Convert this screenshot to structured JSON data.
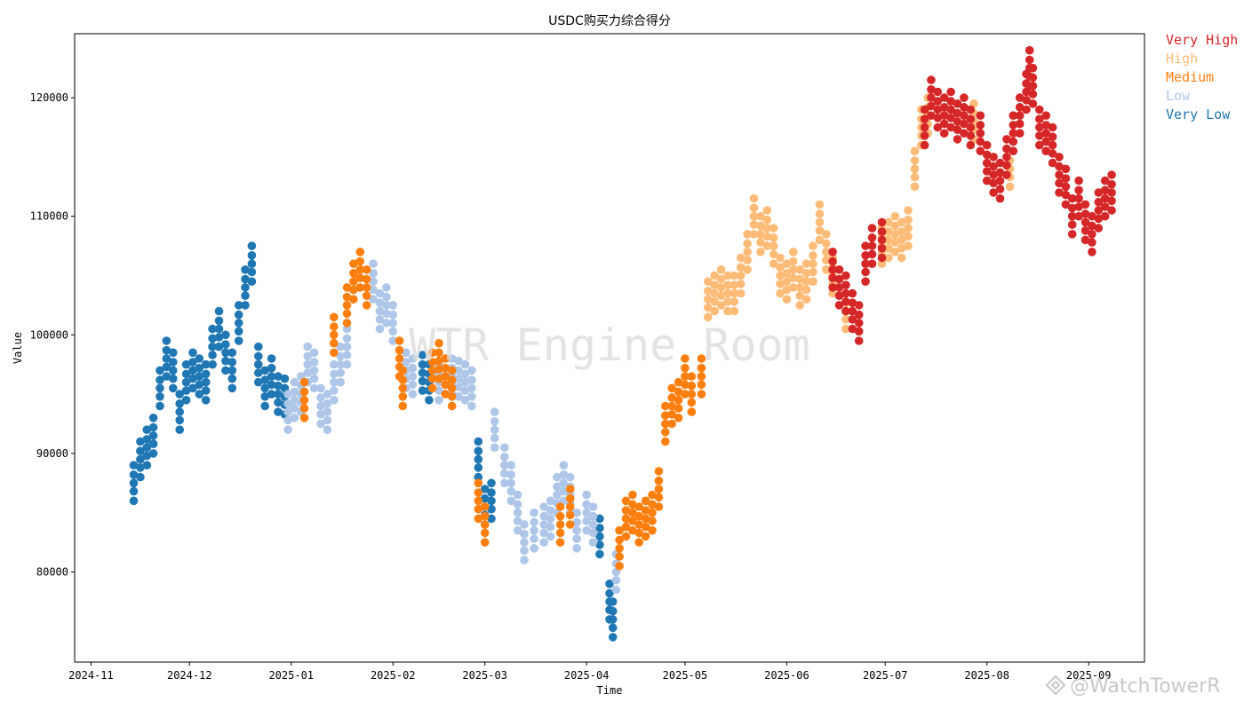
{
  "chart_data": {
    "type": "scatter",
    "title": "USDC购买力综合得分",
    "xlabel": "Time",
    "ylabel": "Value",
    "ylim": [
      72400,
      125400
    ],
    "y_ticks": [
      80000,
      90000,
      100000,
      110000,
      120000
    ],
    "y_tick_labels": [
      "80000",
      "90000",
      "100000",
      "110000",
      "120000"
    ],
    "x_ticks": [
      "2024-11",
      "2024-12",
      "2025-01",
      "2025-02",
      "2025-03",
      "2025-04",
      "2025-05",
      "2025-06",
      "2025-07",
      "2025-08",
      "2025-09"
    ],
    "x_range": [
      "2024-10-27",
      "2025-09-18"
    ],
    "grid": false,
    "legend_position": "outside-top-right",
    "legend": [
      {
        "name": "Very High",
        "color": "#d62728"
      },
      {
        "name": "High",
        "color": "#ffbb78"
      },
      {
        "name": "Medium",
        "color": "#ff7f0e"
      },
      {
        "name": "Low",
        "color": "#aec7e8"
      },
      {
        "name": "Very Low",
        "color": "#1f77b4"
      }
    ],
    "watermark": "WTR Engine Room",
    "series": [
      {
        "name": "Very Low",
        "color": "#1f77b4",
        "points": [
          [
            "2024-11-14",
            87500
          ],
          [
            "2024-11-16",
            89500
          ],
          [
            "2024-11-18",
            90500
          ],
          [
            "2024-11-20",
            91500
          ],
          [
            "2024-11-22",
            95500
          ],
          [
            "2024-11-24",
            98000
          ],
          [
            "2024-11-26",
            97000
          ],
          [
            "2024-11-28",
            93500
          ],
          [
            "2024-11-30",
            96000
          ],
          [
            "2024-12-02",
            97000
          ],
          [
            "2024-12-04",
            96500
          ],
          [
            "2024-12-06",
            96000
          ],
          [
            "2024-12-08",
            99000
          ],
          [
            "2024-12-10",
            100500
          ],
          [
            "2024-12-12",
            98500
          ],
          [
            "2024-12-14",
            97000
          ],
          [
            "2024-12-16",
            101000
          ],
          [
            "2024-12-18",
            104000
          ],
          [
            "2024-12-20",
            106000
          ],
          [
            "2024-12-22",
            97500
          ],
          [
            "2024-12-24",
            95500
          ],
          [
            "2024-12-26",
            96500
          ],
          [
            "2024-12-28",
            95000
          ],
          [
            "2024-12-30",
            94800
          ],
          [
            "2025-02-10",
            96800
          ],
          [
            "2025-02-12",
            96000
          ],
          [
            "2025-02-27",
            89500
          ],
          [
            "2025-03-01",
            85500
          ],
          [
            "2025-03-03",
            86000
          ],
          [
            "2025-04-05",
            83000
          ],
          [
            "2025-04-08",
            77500
          ],
          [
            "2025-04-09",
            76000
          ]
        ]
      },
      {
        "name": "Low",
        "color": "#aec7e8",
        "points": [
          [
            "2024-12-31",
            93500
          ],
          [
            "2025-01-02",
            94500
          ],
          [
            "2025-01-04",
            95000
          ],
          [
            "2025-01-06",
            97500
          ],
          [
            "2025-01-08",
            97000
          ],
          [
            "2025-01-10",
            94000
          ],
          [
            "2025-01-12",
            93500
          ],
          [
            "2025-01-14",
            96000
          ],
          [
            "2025-01-16",
            97500
          ],
          [
            "2025-01-18",
            99000
          ],
          [
            "2025-01-26",
            104500
          ],
          [
            "2025-01-28",
            102000
          ],
          [
            "2025-01-30",
            102500
          ],
          [
            "2025-02-01",
            101000
          ],
          [
            "2025-02-05",
            97000
          ],
          [
            "2025-02-07",
            96500
          ],
          [
            "2025-02-15",
            96000
          ],
          [
            "2025-02-19",
            96500
          ],
          [
            "2025-02-21",
            96300
          ],
          [
            "2025-02-23",
            96000
          ],
          [
            "2025-02-25",
            95500
          ],
          [
            "2025-03-04",
            92000
          ],
          [
            "2025-03-07",
            89000
          ],
          [
            "2025-03-09",
            87500
          ],
          [
            "2025-03-11",
            85000
          ],
          [
            "2025-03-13",
            82500
          ],
          [
            "2025-03-16",
            83500
          ],
          [
            "2025-03-19",
            84000
          ],
          [
            "2025-03-21",
            84500
          ],
          [
            "2025-03-23",
            86500
          ],
          [
            "2025-03-25",
            87500
          ],
          [
            "2025-03-27",
            86500
          ],
          [
            "2025-03-29",
            83500
          ],
          [
            "2025-04-01",
            85000
          ],
          [
            "2025-04-03",
            84000
          ],
          [
            "2025-04-10",
            80000
          ]
        ]
      },
      {
        "name": "Medium",
        "color": "#ff7f0e",
        "points": [
          [
            "2025-01-05",
            94500
          ],
          [
            "2025-01-14",
            100000
          ],
          [
            "2025-01-18",
            102500
          ],
          [
            "2025-01-20",
            104500
          ],
          [
            "2025-01-22",
            105500
          ],
          [
            "2025-01-24",
            104000
          ],
          [
            "2025-02-03",
            98000
          ],
          [
            "2025-02-04",
            95500
          ],
          [
            "2025-02-13",
            97000
          ],
          [
            "2025-02-15",
            97800
          ],
          [
            "2025-02-17",
            96500
          ],
          [
            "2025-02-19",
            95500
          ],
          [
            "2025-02-27",
            86000
          ],
          [
            "2025-03-01",
            84000
          ],
          [
            "2025-03-24",
            84000
          ],
          [
            "2025-03-27",
            85500
          ],
          [
            "2025-04-11",
            82000
          ],
          [
            "2025-04-13",
            84500
          ],
          [
            "2025-04-15",
            85000
          ],
          [
            "2025-04-17",
            84000
          ],
          [
            "2025-04-19",
            84500
          ],
          [
            "2025-04-21",
            85000
          ],
          [
            "2025-04-23",
            87000
          ],
          [
            "2025-04-25",
            92500
          ],
          [
            "2025-04-27",
            94000
          ],
          [
            "2025-04-29",
            94500
          ],
          [
            "2025-05-01",
            96500
          ],
          [
            "2025-05-03",
            95000
          ],
          [
            "2025-05-06",
            96500
          ]
        ]
      },
      {
        "name": "High",
        "color": "#ffbb78",
        "points": [
          [
            "2025-05-08",
            103000
          ],
          [
            "2025-05-10",
            103500
          ],
          [
            "2025-05-12",
            104000
          ],
          [
            "2025-05-14",
            103500
          ],
          [
            "2025-05-16",
            103500
          ],
          [
            "2025-05-18",
            105000
          ],
          [
            "2025-05-20",
            107000
          ],
          [
            "2025-05-22",
            110000
          ],
          [
            "2025-05-24",
            108500
          ],
          [
            "2025-05-26",
            109000
          ],
          [
            "2025-05-28",
            107500
          ],
          [
            "2025-05-30",
            105000
          ],
          [
            "2025-06-01",
            104500
          ],
          [
            "2025-06-03",
            105500
          ],
          [
            "2025-06-05",
            104000
          ],
          [
            "2025-06-07",
            104500
          ],
          [
            "2025-06-09",
            106000
          ],
          [
            "2025-06-11",
            109500
          ],
          [
            "2025-06-13",
            107000
          ],
          [
            "2025-06-15",
            105000
          ],
          [
            "2025-06-19",
            102000
          ],
          [
            "2025-06-30",
            107500
          ],
          [
            "2025-07-02",
            108000
          ],
          [
            "2025-07-04",
            108500
          ],
          [
            "2025-07-06",
            108000
          ],
          [
            "2025-07-08",
            109000
          ],
          [
            "2025-07-10",
            114000
          ],
          [
            "2025-07-12",
            117500
          ],
          [
            "2025-07-14",
            118500
          ],
          [
            "2025-07-28",
            118000
          ],
          [
            "2025-08-08",
            114000
          ]
        ]
      },
      {
        "name": "Very High",
        "color": "#d62728",
        "points": [
          [
            "2025-06-15",
            105500
          ],
          [
            "2025-06-17",
            104000
          ],
          [
            "2025-06-19",
            103500
          ],
          [
            "2025-06-21",
            102000
          ],
          [
            "2025-06-23",
            101000
          ],
          [
            "2025-06-25",
            106000
          ],
          [
            "2025-06-27",
            107500
          ],
          [
            "2025-06-30",
            108000
          ],
          [
            "2025-07-13",
            117500
          ],
          [
            "2025-07-15",
            120000
          ],
          [
            "2025-07-17",
            119000
          ],
          [
            "2025-07-19",
            118500
          ],
          [
            "2025-07-21",
            119000
          ],
          [
            "2025-07-23",
            118000
          ],
          [
            "2025-07-25",
            118500
          ],
          [
            "2025-07-27",
            117500
          ],
          [
            "2025-07-30",
            117000
          ],
          [
            "2025-08-01",
            114500
          ],
          [
            "2025-08-03",
            113500
          ],
          [
            "2025-08-05",
            113000
          ],
          [
            "2025-08-07",
            115000
          ],
          [
            "2025-08-09",
            117000
          ],
          [
            "2025-08-11",
            118500
          ],
          [
            "2025-08-13",
            120500
          ],
          [
            "2025-08-14",
            122500
          ],
          [
            "2025-08-15",
            121000
          ],
          [
            "2025-08-17",
            117500
          ],
          [
            "2025-08-19",
            117000
          ],
          [
            "2025-08-21",
            116000
          ],
          [
            "2025-08-23",
            113500
          ],
          [
            "2025-08-25",
            112500
          ],
          [
            "2025-08-27",
            110000
          ],
          [
            "2025-08-29",
            111500
          ],
          [
            "2025-08-31",
            109500
          ],
          [
            "2025-09-02",
            108500
          ],
          [
            "2025-09-04",
            110500
          ],
          [
            "2025-09-06",
            111500
          ],
          [
            "2025-09-08",
            112000
          ]
        ]
      }
    ]
  },
  "credit": "@WatchTowerR"
}
